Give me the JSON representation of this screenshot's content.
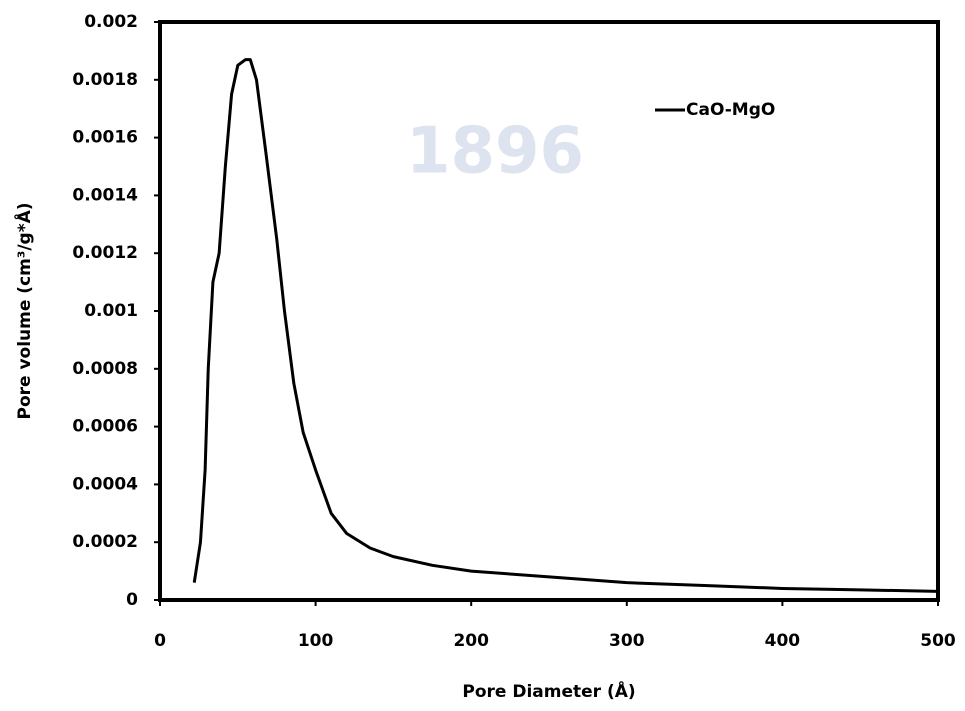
{
  "chart_data": {
    "type": "line",
    "watermark": "1896",
    "x_label": "Pore Diameter (Å)",
    "y_label": "Pore volume (cm³/g*Å)",
    "xlim": [
      0,
      500
    ],
    "xticks": [
      0,
      100,
      200,
      300,
      400,
      500
    ],
    "ylim": [
      0,
      0.002
    ],
    "yticks": [
      0,
      0.0002,
      0.0004,
      0.0006,
      0.0008,
      0.001,
      0.0012,
      0.0014,
      0.0016,
      0.0018,
      0.002
    ],
    "legend": "upper right",
    "series": [
      {
        "name": "CaO-MgO",
        "color": "#000000",
        "x": [
          22,
          26,
          29,
          31,
          34,
          38,
          42,
          46,
          50,
          55,
          58,
          62,
          68,
          75,
          80,
          86,
          92,
          100,
          110,
          120,
          135,
          150,
          175,
          200,
          250,
          300,
          350,
          400,
          450,
          500
        ],
        "values": [
          6e-05,
          0.0002,
          0.00045,
          0.0008,
          0.0011,
          0.0012,
          0.0015,
          0.00175,
          0.00185,
          0.00187,
          0.00187,
          0.0018,
          0.00155,
          0.00125,
          0.001,
          0.00075,
          0.00058,
          0.00045,
          0.0003,
          0.00023,
          0.00018,
          0.00015,
          0.00012,
          0.0001,
          8e-05,
          6e-05,
          5e-05,
          4e-05,
          3.5e-05,
          3e-05
        ]
      }
    ]
  }
}
